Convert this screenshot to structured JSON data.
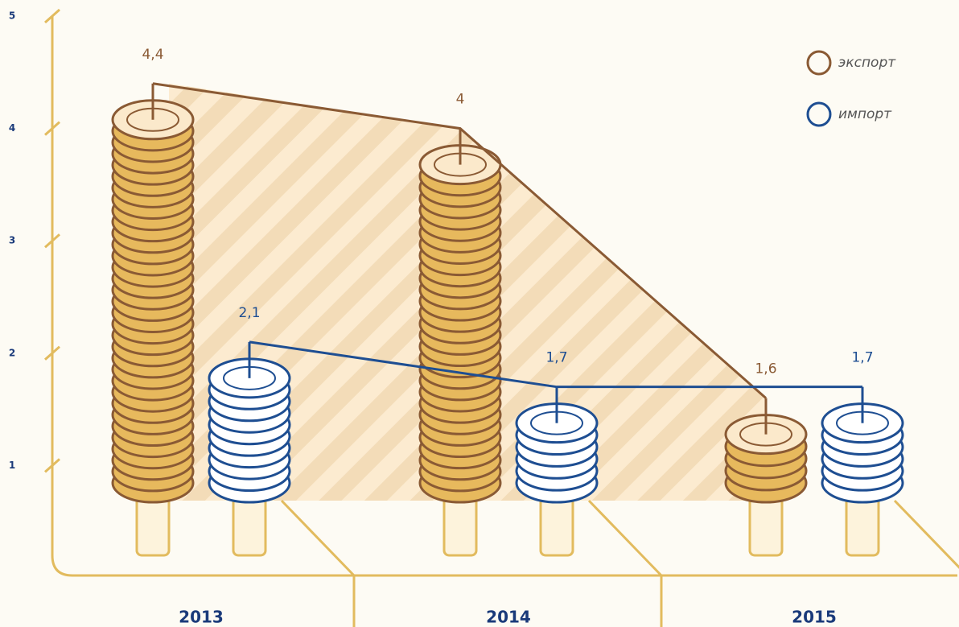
{
  "chart_data": {
    "type": "bar",
    "categories": [
      "2013",
      "2014",
      "2015"
    ],
    "series": [
      {
        "name": "экспорт",
        "color": "#8a5a34",
        "values": [
          4.4,
          4,
          1.6
        ],
        "value_labels": [
          "4,4",
          "4",
          "1,6"
        ]
      },
      {
        "name": "импорт",
        "color": "#1e4e92",
        "values": [
          2.1,
          1.7,
          1.7
        ],
        "value_labels": [
          "2,1",
          "1,7",
          "1,7"
        ]
      }
    ],
    "ylim": [
      0,
      5
    ],
    "yticks": [
      1,
      2,
      3,
      4,
      5
    ]
  }
}
